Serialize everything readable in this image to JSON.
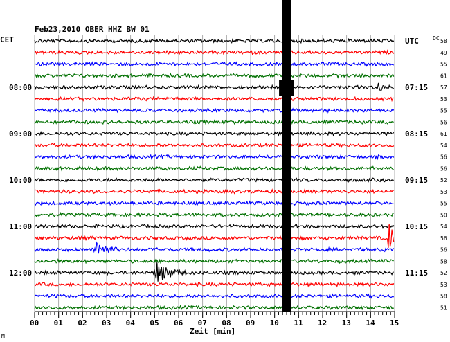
{
  "chart_data": {
    "type": "line",
    "title": "Feb23,2010   OBER HHZ BW 01",
    "left_axis_label": "CET",
    "right_axis_label": "UTC",
    "dc_label": "DC",
    "xlabel": "Zeit [min]",
    "xlim": [
      0,
      15
    ],
    "x_ticks": [
      "00",
      "01",
      "02",
      "03",
      "04",
      "05",
      "06",
      "07",
      "08",
      "09",
      "10",
      "11",
      "12",
      "13",
      "14",
      "15"
    ],
    "grid": true,
    "trace_colors": [
      "#000000",
      "#ff0000",
      "#0000ff",
      "#007000"
    ],
    "left_time_labels": [
      {
        "row": 4,
        "text": "08:00"
      },
      {
        "row": 8,
        "text": "09:00"
      },
      {
        "row": 12,
        "text": "10:00"
      },
      {
        "row": 16,
        "text": "11:00"
      },
      {
        "row": 20,
        "text": "12:00"
      }
    ],
    "right_time_labels": [
      {
        "row": 0,
        "text": "UTC"
      },
      {
        "row": 4,
        "text": "07:15"
      },
      {
        "row": 8,
        "text": "08:15"
      },
      {
        "row": 12,
        "text": "09:15"
      },
      {
        "row": 16,
        "text": "10:15"
      },
      {
        "row": 20,
        "text": "11:15"
      }
    ],
    "dc_values": [
      "58",
      "49",
      "55",
      "61",
      "57",
      "53",
      "55",
      "56",
      "61",
      "54",
      "56",
      "56",
      "52",
      "53",
      "55",
      "50",
      "54",
      "56",
      "56",
      "58",
      "52",
      "53",
      "58",
      "51"
    ],
    "events": [
      {
        "row": 17,
        "start_min": 14.8,
        "end_min": 15.3,
        "amplitude": 1.5
      },
      {
        "row": 18,
        "start_min": 2.6,
        "end_min": 3.3,
        "amplitude": 0.9
      },
      {
        "row": 20,
        "start_min": 5.1,
        "end_min": 6.2,
        "amplitude": 0.9
      },
      {
        "row": 4,
        "start_min": 14.4,
        "end_min": 14.6,
        "amplitude": 0.6
      }
    ],
    "saturated_interval_min": [
      10.3,
      10.7
    ],
    "footer_mark": "M"
  }
}
